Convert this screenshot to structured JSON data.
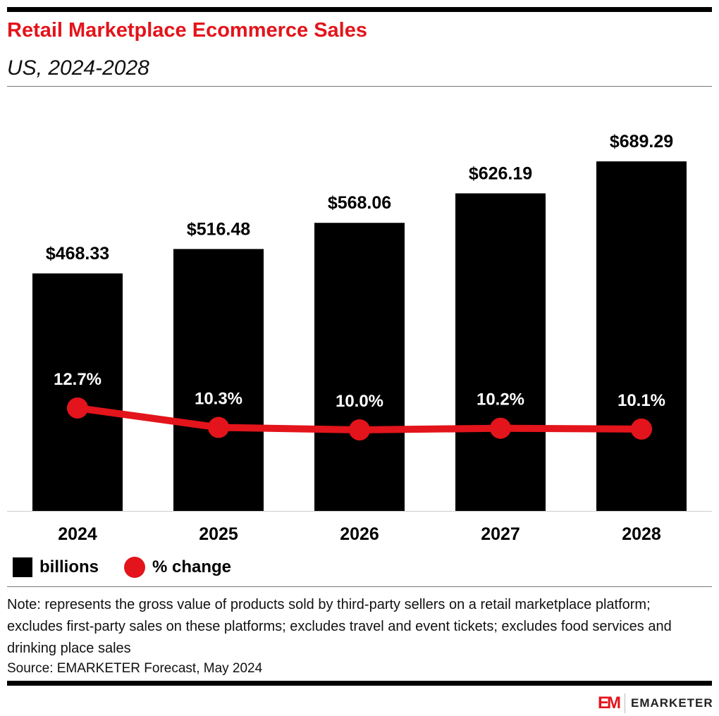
{
  "header": {
    "title": "Retail Marketplace Ecommerce Sales",
    "subtitle": "US, 2024-2028"
  },
  "chart_data": {
    "type": "bar",
    "title": "Retail Marketplace Ecommerce Sales",
    "subtitle": "US, 2024-2028",
    "categories": [
      "2024",
      "2025",
      "2026",
      "2027",
      "2028"
    ],
    "series": [
      {
        "name": "billions",
        "type": "bar",
        "values": [
          468.33,
          516.48,
          568.06,
          626.19,
          689.29
        ],
        "labels": [
          "$468.33",
          "$516.48",
          "$568.06",
          "$626.19",
          "$689.29"
        ],
        "color": "#000000"
      },
      {
        "name": "% change",
        "type": "line",
        "values": [
          12.7,
          10.3,
          10.0,
          10.2,
          10.1
        ],
        "labels": [
          "12.7%",
          "10.3%",
          "10.0%",
          "10.2%",
          "10.1%"
        ],
        "color": "#e3141b"
      }
    ],
    "legend": "bottom-left",
    "grid": false
  },
  "legend": {
    "bars": "billions",
    "line": "% change"
  },
  "footer": {
    "note": "Note: represents the gross value of products sold by third-party sellers on a retail marketplace platform; excludes first-party sales on these platforms; excludes travel and event tickets; excludes food services and drinking place sales",
    "source": "Source: EMARKETER Forecast, May 2024",
    "logo_mark": "EM",
    "logo_text": "EMARKETER"
  }
}
